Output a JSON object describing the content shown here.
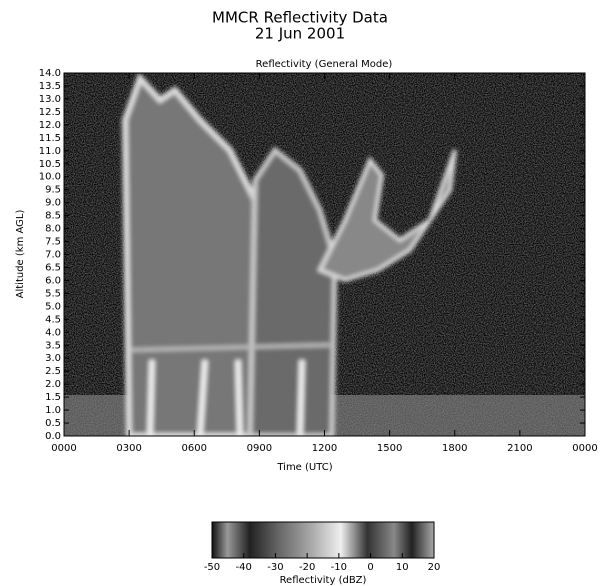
{
  "chart_data": {
    "type": "heatmap",
    "title": "MMCR Reflectivity Data",
    "subtitle": "21 Jun 2001",
    "plot_title": "Reflectivity (General Mode)",
    "x_label": "Time (UTC)",
    "y_label": "Altitude (km AGL)",
    "xlim": [
      0,
      24
    ],
    "xticks": [
      {
        "value": 0,
        "label": "0000"
      },
      {
        "value": 3,
        "label": "0300"
      },
      {
        "value": 6,
        "label": "0600"
      },
      {
        "value": 9,
        "label": "0900"
      },
      {
        "value": 12,
        "label": "1200"
      },
      {
        "value": 15,
        "label": "1500"
      },
      {
        "value": 18,
        "label": "1800"
      },
      {
        "value": 21,
        "label": "2100"
      },
      {
        "value": 24,
        "label": "0000"
      }
    ],
    "ylim": [
      0,
      14
    ],
    "yticks": [
      {
        "value": 0,
        "label": "0.0"
      },
      {
        "value": 0.5,
        "label": "0.5"
      },
      {
        "value": 1,
        "label": "1.0"
      },
      {
        "value": 1.5,
        "label": "1.5"
      },
      {
        "value": 2,
        "label": "2.0"
      },
      {
        "value": 2.5,
        "label": "2.5"
      },
      {
        "value": 3,
        "label": "3.0"
      },
      {
        "value": 3.5,
        "label": "3.5"
      },
      {
        "value": 4,
        "label": "4.0"
      },
      {
        "value": 4.5,
        "label": "4.5"
      },
      {
        "value": 5,
        "label": "5.0"
      },
      {
        "value": 5.5,
        "label": "5.5"
      },
      {
        "value": 6,
        "label": "6.0"
      },
      {
        "value": 6.5,
        "label": "6.5"
      },
      {
        "value": 7,
        "label": "7.0"
      },
      {
        "value": 7.5,
        "label": "7.5"
      },
      {
        "value": 8,
        "label": "8.0"
      },
      {
        "value": 8.5,
        "label": "8.5"
      },
      {
        "value": 9,
        "label": "9.0"
      },
      {
        "value": 9.5,
        "label": "9.5"
      },
      {
        "value": 10,
        "label": "10.0"
      },
      {
        "value": 10.5,
        "label": "10.5"
      },
      {
        "value": 11,
        "label": "11.0"
      },
      {
        "value": 11.5,
        "label": "11.5"
      },
      {
        "value": 12,
        "label": "12.0"
      },
      {
        "value": 12.5,
        "label": "12.5"
      },
      {
        "value": 13,
        "label": "13.0"
      },
      {
        "value": 13.5,
        "label": "13.5"
      },
      {
        "value": 14,
        "label": "14.0"
      }
    ],
    "colorbar": {
      "label": "Reflectivity (dBZ)",
      "lim": [
        -50,
        20
      ],
      "ticks": [
        -50,
        -40,
        -30,
        -20,
        -10,
        0,
        10,
        20
      ]
    }
  }
}
